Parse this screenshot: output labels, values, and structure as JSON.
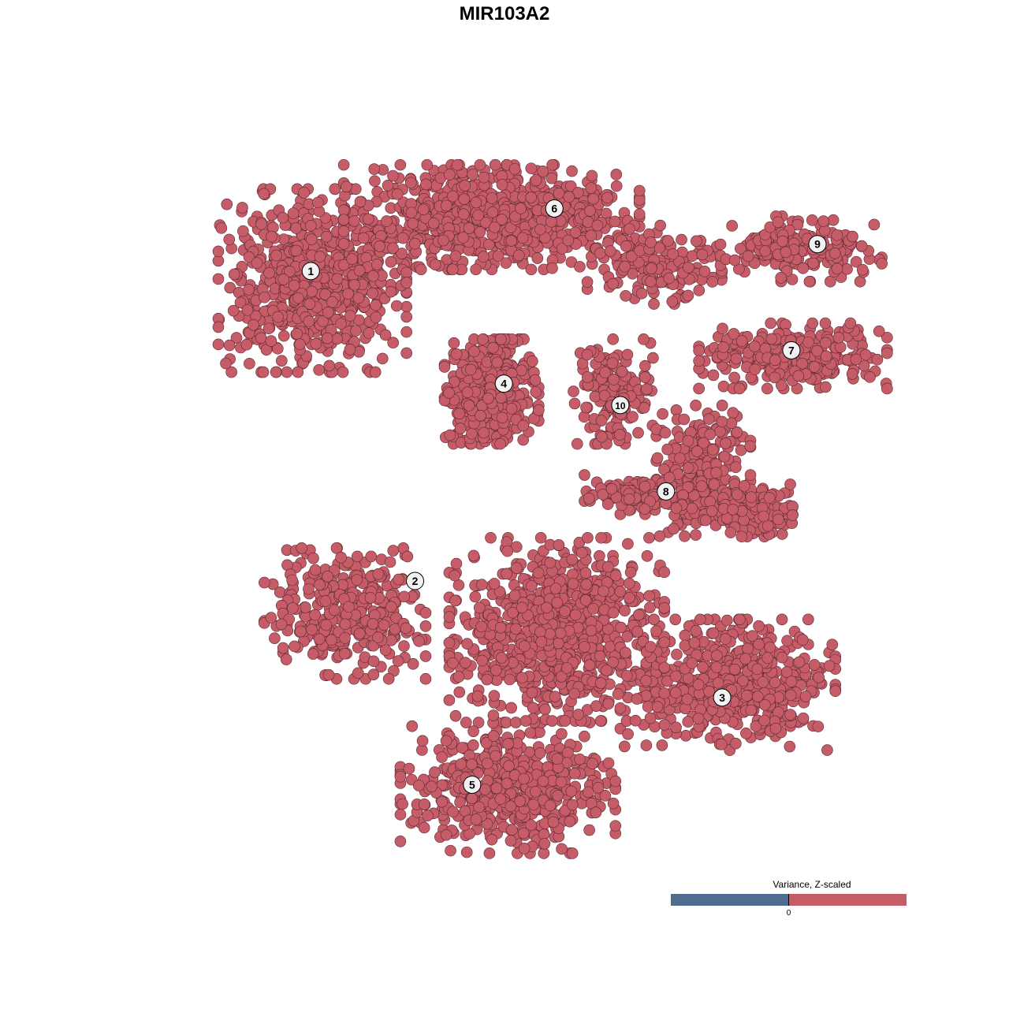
{
  "chart_data": {
    "type": "scatter",
    "title": "MIR103A2",
    "point_color": "#c55c68",
    "point_stroke": "#5a2a30",
    "grid": false,
    "axes_visible": false,
    "xlim": [
      -45,
      45
    ],
    "ylim": [
      -45,
      45
    ],
    "legend": {
      "title": "Variance, Z-scaled",
      "position": "bottom-right",
      "low_color": "#4f6d8f",
      "high_color": "#c55c68",
      "tick_labels": [
        "0"
      ]
    },
    "clusters": [
      {
        "label": "1",
        "label_at": [
          -26.2,
          29.2
        ],
        "lobes": [
          [
            -26,
            28,
            7,
            7,
            650
          ]
        ]
      },
      {
        "label": "6",
        "label_at": [
          3.7,
          37.1
        ],
        "lobes": [
          [
            -4,
            36,
            11,
            4,
            800
          ],
          [
            16,
            30,
            5,
            3,
            150
          ]
        ]
      },
      {
        "label": "4",
        "label_at": [
          -2.5,
          15.0
        ],
        "lobes": [
          [
            -4,
            14,
            3.5,
            4,
            450
          ]
        ]
      },
      {
        "label": "10",
        "label_at": [
          11.8,
          12.3
        ],
        "lobes": [
          [
            11,
            14,
            3,
            4,
            150
          ]
        ]
      },
      {
        "label": "9",
        "label_at": [
          36.0,
          32.6
        ],
        "lobes": [
          [
            34,
            32,
            6,
            2.5,
            200
          ]
        ]
      },
      {
        "label": "7",
        "label_at": [
          32.8,
          19.2
        ],
        "lobes": [
          [
            33,
            18.5,
            7,
            2.5,
            300
          ]
        ]
      },
      {
        "label": "8",
        "label_at": [
          17.4,
          1.4
        ],
        "lobes": [
          [
            22,
            4,
            3.5,
            5,
            250
          ],
          [
            28,
            -1,
            3,
            2,
            150
          ],
          [
            14,
            1,
            4,
            1.5,
            100
          ]
        ]
      },
      {
        "label": "2",
        "label_at": [
          -13.4,
          -9.9
        ],
        "lobes": [
          [
            -22,
            -14,
            6,
            5,
            350
          ]
        ]
      },
      {
        "label": "3",
        "label_at": [
          24.3,
          -24.6
        ],
        "lobes": [
          [
            25,
            -23,
            8,
            5,
            550
          ]
        ]
      },
      {
        "label": "5",
        "label_at": [
          -6.4,
          -35.6
        ],
        "lobes": [
          [
            -2,
            -36,
            8,
            5,
            550
          ],
          [
            4,
            -16,
            8,
            7,
            800
          ]
        ]
      }
    ]
  }
}
